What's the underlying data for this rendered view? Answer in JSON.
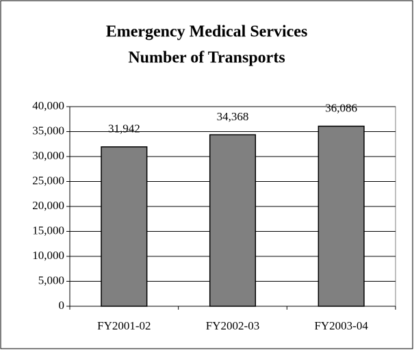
{
  "chart_data": {
    "type": "bar",
    "title": [
      "Emergency Medical Services",
      "Number of Transports"
    ],
    "categories": [
      "FY2001-02",
      "FY2002-03",
      "FY2003-04"
    ],
    "values": [
      31942,
      34368,
      36086
    ],
    "value_labels": [
      "31,942",
      "34,368",
      "36,086"
    ],
    "color": "#808080",
    "ylim": [
      0,
      40000
    ],
    "yticks": [
      0,
      {
        "value": 5000,
        "label": "5,000"
      },
      {
        "value": 10000,
        "label": "10,000"
      },
      {
        "value": 15000,
        "label": "15,000"
      },
      {
        "value": 20000,
        "label": "20,000"
      },
      {
        "value": 25000,
        "label": "25,000"
      },
      {
        "value": 30000,
        "label": "30,000"
      },
      {
        "value": 35000,
        "label": "35,000"
      },
      {
        "value": 40000,
        "label": "40,000"
      }
    ],
    "grid": true
  }
}
